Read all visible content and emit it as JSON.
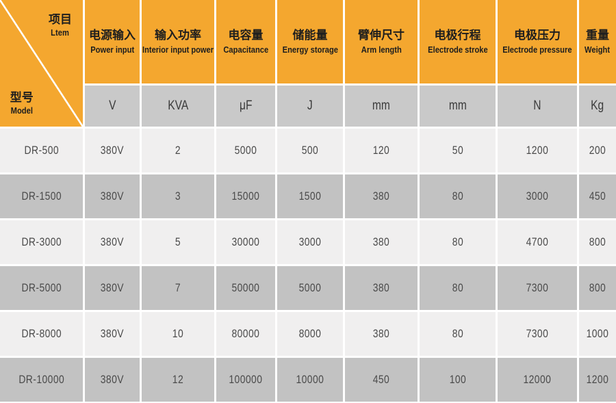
{
  "table": {
    "corner": {
      "top_zh": "项目",
      "top_en": "Ltem",
      "bottom_zh": "型号",
      "bottom_en": "Model"
    },
    "columns": [
      {
        "zh": "电源输入",
        "en": "Power input",
        "unit": "V"
      },
      {
        "zh": "输入功率",
        "en": "Interior input power",
        "unit": "KVA"
      },
      {
        "zh": "电容量",
        "en": "Capacitance",
        "unit": "μF"
      },
      {
        "zh": "储能量",
        "en": "Energy storage",
        "unit": "J"
      },
      {
        "zh": "臂伸尺寸",
        "en": "Arm length",
        "unit": "mm"
      },
      {
        "zh": "电极行程",
        "en": "Electrode stroke",
        "unit": "mm"
      },
      {
        "zh": "电极压力",
        "en": "Electrode pressure",
        "unit": "N"
      },
      {
        "zh": "重量",
        "en": "Weight",
        "unit": "Kg"
      }
    ],
    "rows": [
      {
        "model": "DR-500",
        "values": [
          "380V",
          "2",
          "5000",
          "500",
          "120",
          "50",
          "1200",
          "200"
        ]
      },
      {
        "model": "DR-1500",
        "values": [
          "380V",
          "3",
          "15000",
          "1500",
          "380",
          "80",
          "3000",
          "450"
        ]
      },
      {
        "model": "DR-3000",
        "values": [
          "380V",
          "5",
          "30000",
          "3000",
          "380",
          "80",
          "4700",
          "800"
        ]
      },
      {
        "model": "DR-5000",
        "values": [
          "380V",
          "7",
          "50000",
          "5000",
          "380",
          "80",
          "7300",
          "800"
        ]
      },
      {
        "model": "DR-8000",
        "values": [
          "380V",
          "10",
          "80000",
          "8000",
          "380",
          "80",
          "7300",
          "1000"
        ]
      },
      {
        "model": "DR-10000",
        "values": [
          "380V",
          "12",
          "100000",
          "10000",
          "450",
          "100",
          "12000",
          "1200"
        ]
      }
    ],
    "colors": {
      "header_orange": "#F4A72F",
      "unit_gray": "#C9C9C9",
      "row_light": "#F0EFEF",
      "row_dark": "#C2C2C2",
      "header_text": "#1E1E1E",
      "data_text": "#4A4A4A",
      "divider_white": "#FFFFFF"
    }
  },
  "chart_data": {
    "type": "table",
    "title": "Spot welder specification table",
    "column_headers": [
      "型号 Model",
      "电源输入 Power input (V)",
      "输入功率 Interior input power (KVA)",
      "电容量 Capacitance (μF)",
      "储能量 Energy storage (J)",
      "臂伸尺寸 Arm length (mm)",
      "电极行程 Electrode stroke (mm)",
      "电极压力 Electrode pressure (N)",
      "重量 Weight (Kg)"
    ],
    "rows": [
      [
        "DR-500",
        "380V",
        2,
        5000,
        500,
        120,
        50,
        1200,
        200
      ],
      [
        "DR-1500",
        "380V",
        3,
        15000,
        1500,
        380,
        80,
        3000,
        450
      ],
      [
        "DR-3000",
        "380V",
        5,
        30000,
        3000,
        380,
        80,
        4700,
        800
      ],
      [
        "DR-5000",
        "380V",
        7,
        50000,
        5000,
        380,
        80,
        7300,
        800
      ],
      [
        "DR-8000",
        "380V",
        10,
        80000,
        8000,
        380,
        80,
        7300,
        1000
      ],
      [
        "DR-10000",
        "380V",
        12,
        100000,
        10000,
        450,
        100,
        12000,
        1200
      ]
    ]
  }
}
